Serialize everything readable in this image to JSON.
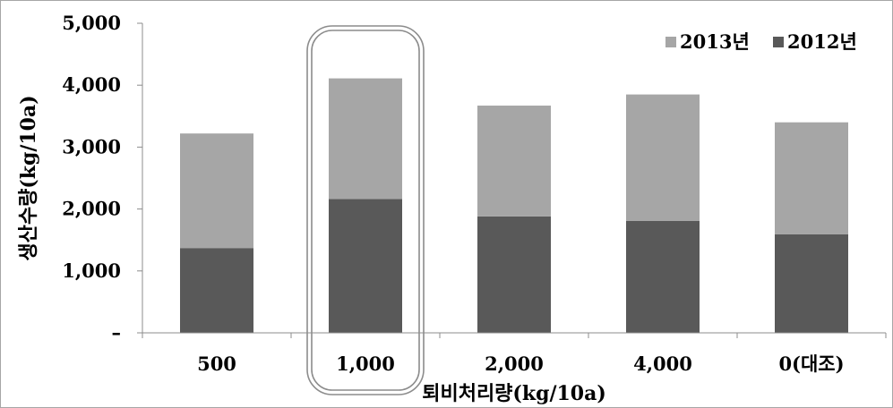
{
  "chart_data": {
    "type": "bar",
    "stacked": true,
    "categories": [
      "500",
      "1,000",
      "2,000",
      "4,000",
      "0(대조)"
    ],
    "series": [
      {
        "name": "2012년",
        "values": [
          1370,
          2160,
          1880,
          1810,
          1590
        ],
        "color": "#595959"
      },
      {
        "name": "2013년",
        "values": [
          1850,
          1950,
          1790,
          2040,
          1810
        ],
        "color": "#a6a6a6"
      }
    ],
    "ylim": [
      0,
      5000
    ],
    "yticks": [
      0,
      1000,
      2000,
      3000,
      4000,
      5000
    ],
    "ytick_labels": [
      "–",
      "1,000",
      "2,000",
      "3,000",
      "4,000",
      "5,000"
    ],
    "xlabel": "퇴비처리량(kg/10a)",
    "ylabel": "생산수량(kg/10a)",
    "legend": {
      "placement": "top-right",
      "order": [
        "2013년",
        "2012년"
      ]
    },
    "grid": false,
    "highlight": {
      "category": "1,000",
      "style": "rounded double outline"
    }
  }
}
